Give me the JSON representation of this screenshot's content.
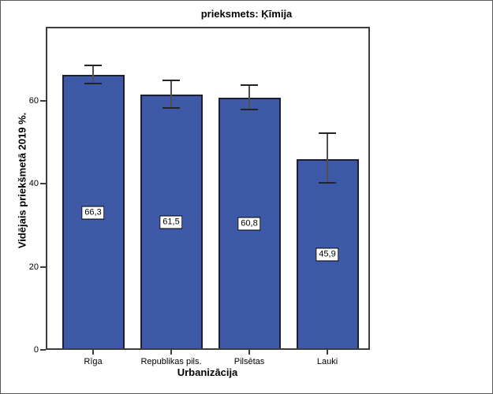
{
  "chart_data": {
    "type": "bar",
    "title": "prieksmets: Ķīmija",
    "xlabel": "Urbanizācija",
    "ylabel": "Vidējais priekšmetā 2019 %.",
    "categories": [
      "Rīga",
      "Republikas pils.",
      "Pilsētas",
      "Lauki"
    ],
    "values": [
      66.3,
      61.5,
      60.8,
      45.9
    ],
    "value_labels": [
      "66,3",
      "61,5",
      "60,8",
      "45,9"
    ],
    "error_bars": true,
    "error_low": [
      64.2,
      58.3,
      58.0,
      40.2
    ],
    "error_high": [
      68.6,
      64.9,
      63.8,
      52.2
    ],
    "ylim": [
      0,
      77.9
    ],
    "yticks": [
      0,
      20,
      40,
      60
    ],
    "grid": false,
    "legend": "none",
    "bar_color": "#3e59a8",
    "bar_border_color": "#1c1e33",
    "value_label_style": "boxed-white"
  }
}
